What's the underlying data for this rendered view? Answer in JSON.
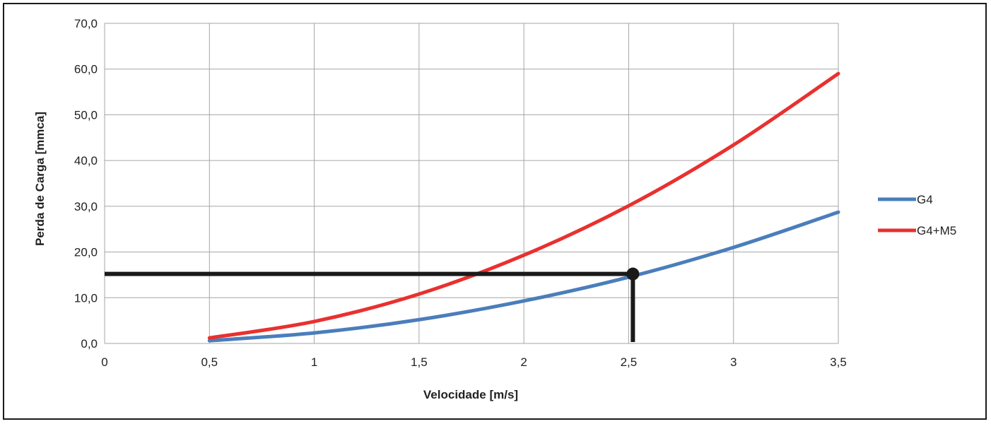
{
  "chart_data": {
    "type": "line",
    "xlabel": "Velocidade [m/s]",
    "ylabel": "Perda de Carga [mmca]",
    "xlim": [
      0,
      3.5
    ],
    "ylim": [
      0,
      70
    ],
    "x_ticks": [
      "0",
      "0,5",
      "1",
      "1,5",
      "2",
      "2,5",
      "3",
      "3,5"
    ],
    "y_ticks": [
      "0,0",
      "10,0",
      "20,0",
      "30,0",
      "40,0",
      "50,0",
      "60,0",
      "70,0"
    ],
    "grid": true,
    "legend_position": "right",
    "x": [
      0.5,
      1.0,
      1.5,
      2.0,
      2.5,
      3.0,
      3.5
    ],
    "series": [
      {
        "name": "G4",
        "color": "#4a7ebb",
        "values": [
          0.6,
          2.3,
          5.2,
          9.3,
          14.5,
          21.0,
          28.7
        ]
      },
      {
        "name": "G4+M5",
        "color": "#e8312f",
        "values": [
          1.2,
          4.8,
          10.8,
          19.3,
          30.1,
          43.4,
          59.0
        ]
      }
    ],
    "annotation": {
      "color": "#1a1a1a",
      "x": 2.52,
      "y": 15.2,
      "horizontal_from_x": 0,
      "vertical_to_y": 0
    }
  }
}
